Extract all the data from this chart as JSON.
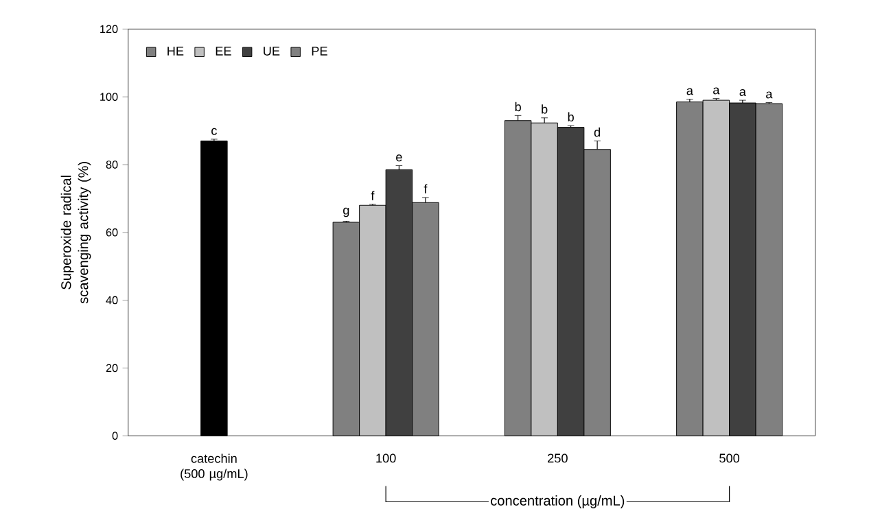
{
  "chart_data": {
    "type": "bar",
    "ylabel": "Superoxide radical scavenging activity (%)",
    "xlabel": "concentration (µg/mL)",
    "categories": [
      "catechin (500 µg/mL)",
      "100",
      "250",
      "500"
    ],
    "ylim": [
      0,
      120
    ],
    "yticks": [
      0,
      20,
      40,
      60,
      80,
      100,
      120
    ],
    "legend": "top left",
    "grid": false,
    "series": [
      {
        "color": "#000000",
        "values": [
          87,
          null,
          null,
          null
        ],
        "errors": [
          0.5,
          null,
          null,
          null
        ],
        "value_labels": [
          "c",
          null,
          null,
          null
        ]
      },
      {
        "name": "HE",
        "color": "#808080",
        "values": [
          null,
          63,
          93,
          98.5
        ],
        "errors": [
          null,
          0.3,
          1.5,
          0.8
        ],
        "value_labels": [
          null,
          "g",
          "b",
          "a"
        ]
      },
      {
        "name": "EE",
        "color": "#c0c0c0",
        "values": [
          null,
          68,
          92.3,
          99
        ],
        "errors": [
          null,
          0.3,
          1.5,
          0.5
        ],
        "value_labels": [
          null,
          "f",
          "b",
          "a"
        ]
      },
      {
        "name": "UE",
        "color": "#404040",
        "values": [
          null,
          78.5,
          91,
          98.2
        ],
        "errors": [
          null,
          1.2,
          0.5,
          0.8
        ],
        "value_labels": [
          null,
          "e",
          "b",
          "a"
        ]
      },
      {
        "name": "PE",
        "color": "#808080",
        "values": [
          null,
          68.8,
          84.5,
          98
        ],
        "errors": [
          null,
          1.5,
          2.5,
          0.3
        ],
        "value_labels": [
          null,
          "f",
          "d",
          "a"
        ]
      }
    ]
  }
}
